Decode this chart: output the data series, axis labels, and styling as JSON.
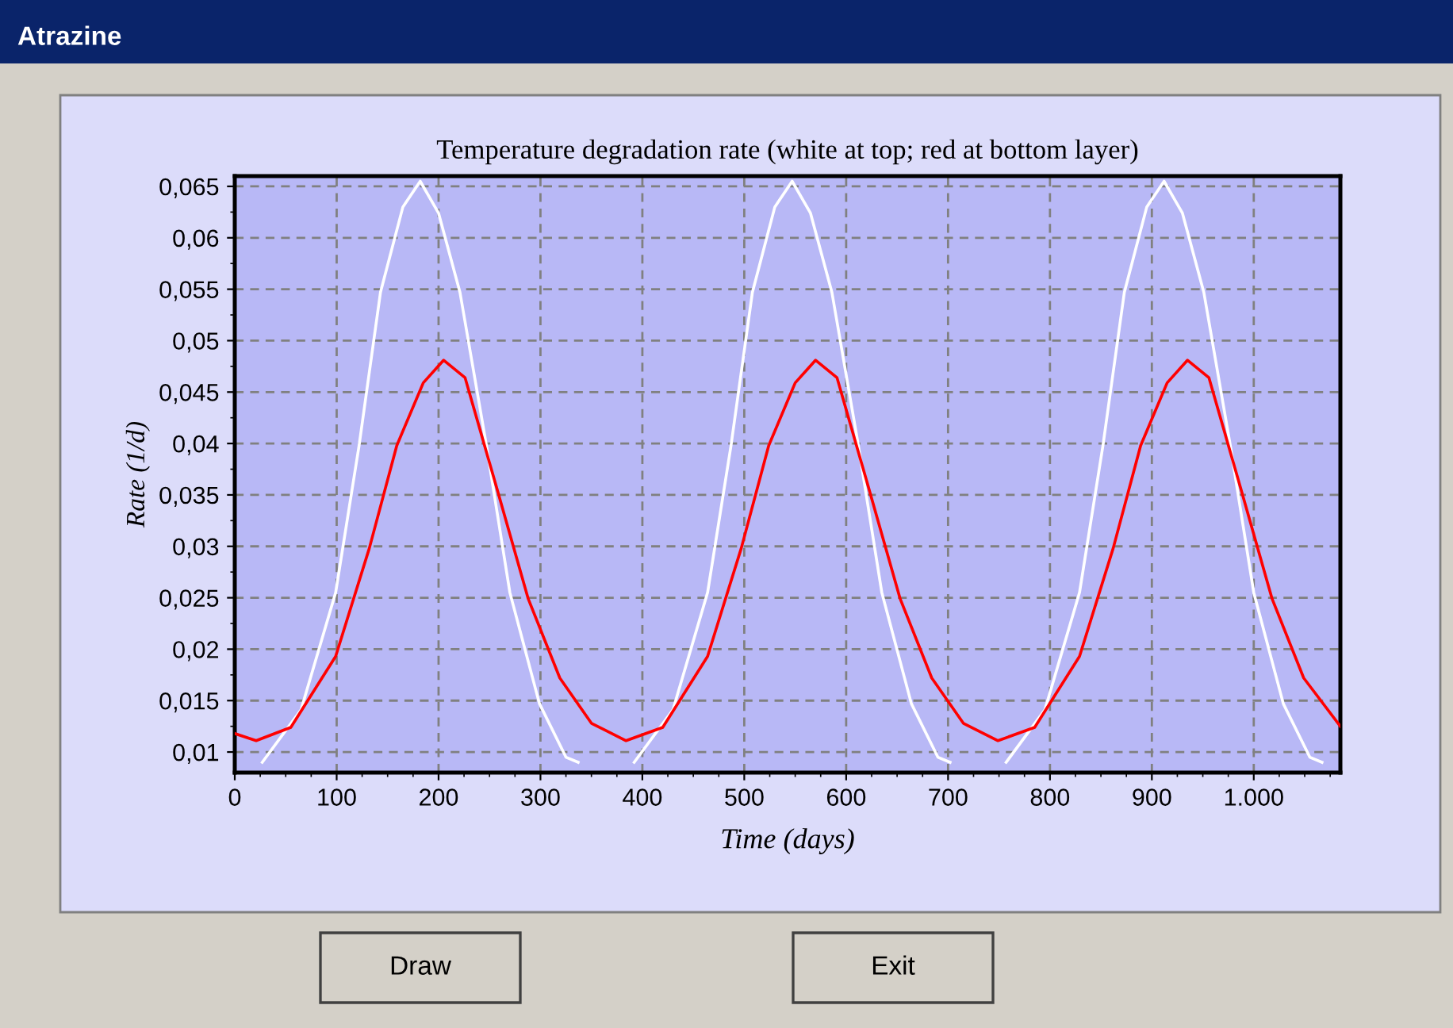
{
  "chart_data": {
    "type": "line",
    "title": "Temperature degradation rate (white at top; red at bottom layer)",
    "xlabel": "Time (days)",
    "ylabel": "Rate (1/d)",
    "annotations": [
      "Atrazine",
      "Draw",
      "Exit"
    ],
    "xlim": [
      0,
      1085
    ],
    "ylim": [
      0.008,
      0.066
    ],
    "xticks": [
      0,
      100,
      200,
      300,
      400,
      500,
      600,
      700,
      800,
      900,
      {
        "value": 1000,
        "label": "1.000"
      }
    ],
    "yticks": [
      {
        "value": 0.01,
        "label": "0,01"
      },
      {
        "value": 0.015,
        "label": "0,015"
      },
      {
        "value": 0.02,
        "label": "0,02"
      },
      {
        "value": 0.025,
        "label": "0,025"
      },
      {
        "value": 0.03,
        "label": "0,03"
      },
      {
        "value": 0.035,
        "label": "0,035"
      },
      {
        "value": 0.04,
        "label": "0,04"
      },
      {
        "value": 0.045,
        "label": "0,045"
      },
      {
        "value": 0.05,
        "label": "0,05"
      },
      {
        "value": 0.055,
        "label": "0,055"
      },
      {
        "value": 0.06,
        "label": "0,06"
      },
      {
        "value": 0.065,
        "label": "0,065"
      }
    ],
    "grid": true,
    "line_style": "solid",
    "series": [
      {
        "color": "#ffffff",
        "x": [
          27,
          65,
          99,
          122,
          143,
          165,
          182,
          200,
          221,
          247,
          270,
          299,
          325,
          337,
          350,
          392,
          430,
          464,
          487,
          508,
          530,
          547,
          565,
          586,
          612,
          635,
          664,
          690,
          702,
          715,
          757,
          795,
          829,
          852,
          873,
          895,
          912,
          930,
          951,
          977,
          1000,
          1029,
          1055,
          1067
        ],
        "values": [
          0.009,
          0.0141,
          0.0255,
          0.0398,
          0.0547,
          0.063,
          0.0655,
          0.0624,
          0.0547,
          0.0398,
          0.0255,
          0.0147,
          0.0095,
          0.009,
          null,
          0.009,
          0.0141,
          0.0255,
          0.0398,
          0.0547,
          0.063,
          0.0655,
          0.0624,
          0.0547,
          0.0398,
          0.0255,
          0.0147,
          0.0095,
          0.009,
          null,
          0.009,
          0.0141,
          0.0255,
          0.0398,
          0.0547,
          0.063,
          0.0655,
          0.0624,
          0.0547,
          0.0398,
          0.0255,
          0.0147,
          0.0095,
          0.009
        ]
      },
      {
        "color": "#ff0000",
        "x": [
          0,
          21,
          55,
          99,
          132,
          159,
          185,
          205,
          226,
          257,
          288,
          319,
          350,
          384,
          420,
          464,
          497,
          524,
          550,
          570,
          591,
          622,
          653,
          684,
          715,
          749,
          785,
          829,
          862,
          889,
          915,
          935,
          956,
          987,
          1018,
          1049,
          1085
        ],
        "values": [
          0.0118,
          0.0111,
          0.0124,
          0.0193,
          0.0298,
          0.0398,
          0.0459,
          0.0481,
          0.0464,
          0.0357,
          0.0249,
          0.0172,
          0.0128,
          0.0111,
          0.0124,
          0.0193,
          0.0298,
          0.0398,
          0.0459,
          0.0481,
          0.0464,
          0.0357,
          0.0249,
          0.0172,
          0.0128,
          0.0111,
          0.0124,
          0.0193,
          0.0298,
          0.0398,
          0.0459,
          0.0481,
          0.0464,
          0.0357,
          0.0249,
          0.0172,
          0.0125
        ]
      }
    ]
  }
}
